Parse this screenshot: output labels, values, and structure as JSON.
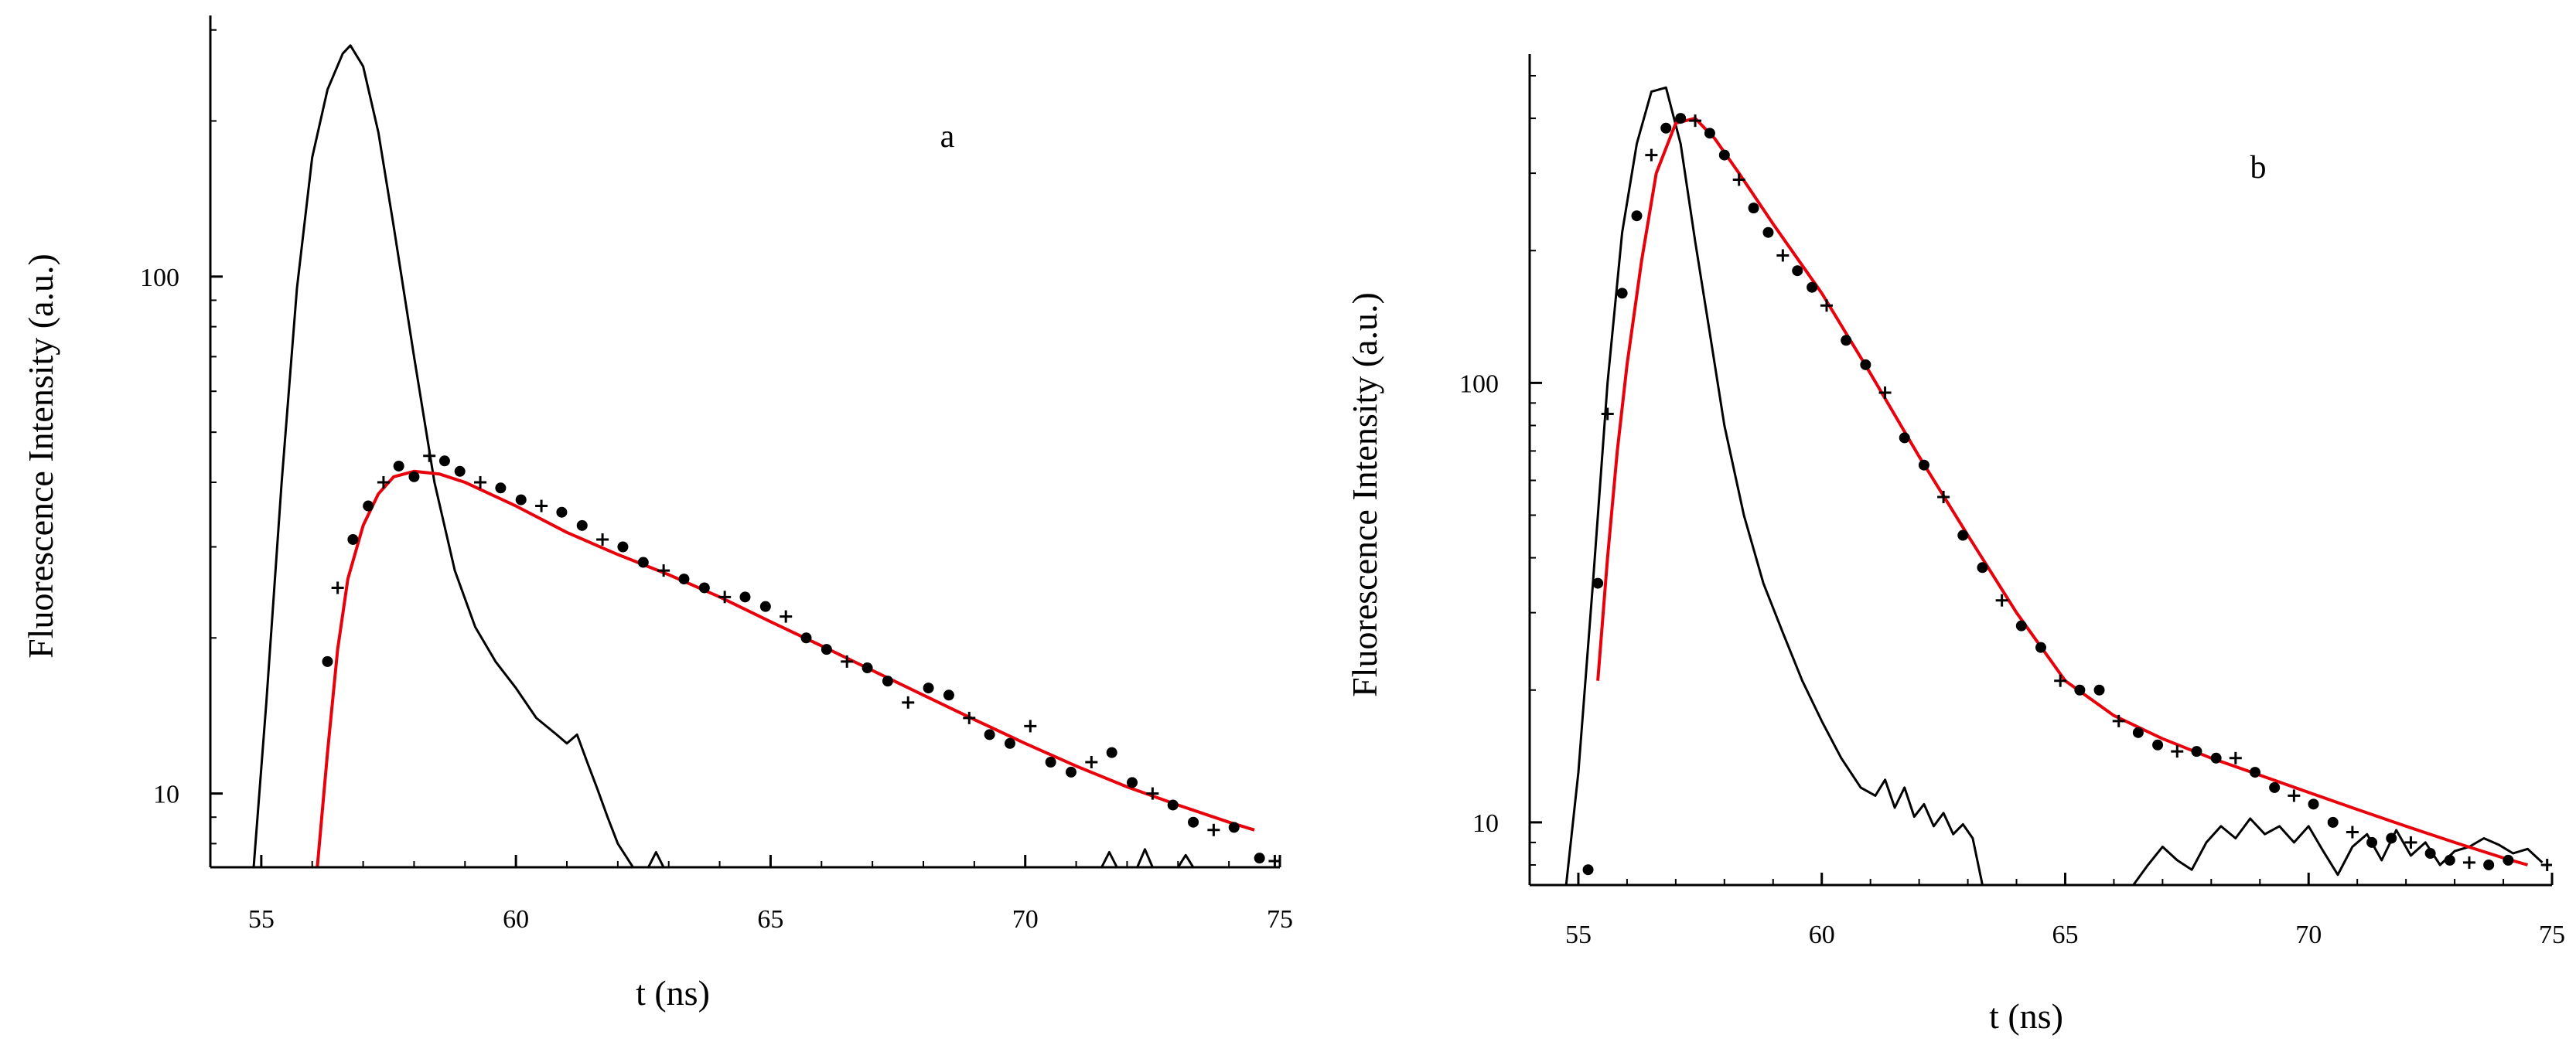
{
  "chart_data": [
    {
      "type": "line",
      "panel_label": "a",
      "xlabel": "t (ns)",
      "ylabel": "Fluorescence Intensity (a.u.)",
      "xlim": [
        54,
        75
      ],
      "ylim": [
        7.2,
        320
      ],
      "yscale": "log",
      "xticks": [
        55,
        60,
        65,
        70,
        75
      ],
      "yticks": [
        10,
        100
      ],
      "grid": false,
      "legend": "none",
      "colors": {
        "fit": "#e8000b",
        "irf": "#000000",
        "data": "#000000"
      },
      "series": [
        {
          "role": "instrument-response",
          "style": "line",
          "x": [
            54.85,
            55.1,
            55.4,
            55.7,
            56.0,
            56.3,
            56.6,
            56.75,
            57.0,
            57.3,
            57.6,
            58.0,
            58.4,
            58.8,
            59.2,
            59.6,
            60.0,
            60.4,
            60.8,
            61.0,
            61.2,
            61.4,
            61.6,
            61.8,
            62.0,
            62.3
          ],
          "y": [
            7.2,
            15,
            40,
            95,
            170,
            230,
            270,
            280,
            255,
            190,
            125,
            70,
            40,
            27,
            21,
            18,
            16,
            14,
            13,
            12.5,
            13,
            11.5,
            10.2,
            9.0,
            8.0,
            7.2
          ]
        },
        {
          "role": "instrument-response-tail",
          "style": "line",
          "x": [
            62.6,
            62.75,
            62.9,
            71.5,
            71.65,
            71.8,
            72.2,
            72.35,
            72.5,
            73.0,
            73.15,
            73.3
          ],
          "y": [
            7.2,
            7.7,
            7.2,
            7.2,
            7.7,
            7.2,
            7.2,
            7.8,
            7.2,
            7.2,
            7.6,
            7.2
          ]
        },
        {
          "role": "fit",
          "style": "line",
          "x": [
            56.1,
            56.3,
            56.5,
            56.7,
            57.0,
            57.3,
            57.6,
            58.0,
            58.5,
            59.0,
            60.0,
            61.0,
            62.0,
            63.0,
            64.0,
            65.0,
            66.0,
            67.0,
            68.0,
            69.0,
            70.0,
            71.0,
            72.0,
            73.0,
            74.0,
            74.5
          ],
          "y": [
            7.2,
            12,
            19,
            26,
            33,
            38,
            41,
            42,
            41.5,
            40,
            36,
            32,
            29,
            26.5,
            24,
            21.5,
            19.3,
            17.3,
            15.5,
            13.9,
            12.5,
            11.3,
            10.3,
            9.5,
            8.8,
            8.5
          ]
        },
        {
          "role": "data",
          "style": "markers",
          "x": [
            56.3,
            56.5,
            56.8,
            57.1,
            57.4,
            57.7,
            58.0,
            58.3,
            58.6,
            58.9,
            59.3,
            59.7,
            60.1,
            60.5,
            60.9,
            61.3,
            61.7,
            62.1,
            62.5,
            62.9,
            63.3,
            63.7,
            64.1,
            64.5,
            64.9,
            65.3,
            65.7,
            66.1,
            66.5,
            66.9,
            67.3,
            67.7,
            68.1,
            68.5,
            68.9,
            69.3,
            69.7,
            70.1,
            70.5,
            70.9,
            71.3,
            71.7,
            72.1,
            72.5,
            72.9,
            73.3,
            73.7,
            74.1,
            74.6,
            74.9
          ],
          "y": [
            18,
            25,
            31,
            36,
            40,
            43,
            41,
            45,
            44,
            42,
            40,
            39,
            37,
            36,
            35,
            33,
            31,
            30,
            28,
            27,
            26,
            25,
            24,
            24,
            23,
            22,
            20,
            19,
            18,
            17.5,
            16.5,
            15,
            16,
            15.5,
            14,
            13,
            12.5,
            13.5,
            11.5,
            11,
            11.5,
            12,
            10.5,
            10,
            9.5,
            8.8,
            8.5,
            8.6,
            7.5,
            7.4
          ]
        }
      ]
    },
    {
      "type": "line",
      "panel_label": "b",
      "xlabel": "t (ns)",
      "ylabel": "Fluorescence Intensity (a.u.)",
      "xlim": [
        54,
        75
      ],
      "ylim": [
        7.2,
        560
      ],
      "yscale": "log",
      "xticks": [
        55,
        60,
        65,
        70,
        75
      ],
      "yticks": [
        10,
        100
      ],
      "grid": false,
      "legend": "none",
      "colors": {
        "fit": "#e8000b",
        "irf": "#000000",
        "data": "#000000"
      },
      "series": [
        {
          "role": "instrument-response",
          "style": "line",
          "x": [
            54.75,
            55.0,
            55.3,
            55.6,
            55.9,
            56.2,
            56.5,
            56.8,
            57.1,
            57.4,
            57.7,
            58.0,
            58.4,
            58.8,
            59.2,
            59.6,
            60.0,
            60.4,
            60.8,
            61.1,
            61.3,
            61.5,
            61.7,
            61.9,
            62.1,
            62.3,
            62.5,
            62.7,
            62.9,
            63.1,
            63.3
          ],
          "y": [
            7.2,
            13,
            35,
            100,
            220,
            350,
            460,
            470,
            350,
            210,
            130,
            80,
            50,
            35,
            27,
            21,
            17,
            14,
            12,
            11.5,
            12.5,
            10.8,
            12,
            10.3,
            11,
            9.8,
            10.5,
            9.4,
            9.9,
            9.2,
            7.2
          ]
        },
        {
          "role": "instrument-response-tail",
          "style": "line",
          "x": [
            66.4,
            66.7,
            67.0,
            67.3,
            67.6,
            67.9,
            68.2,
            68.5,
            68.8,
            69.1,
            69.4,
            69.7,
            70.0,
            70.3,
            70.6,
            70.9,
            71.2,
            71.5,
            71.8,
            72.1,
            72.4,
            72.7,
            73.0,
            73.3,
            73.6,
            73.9,
            74.2,
            74.5,
            74.8
          ],
          "y": [
            7.2,
            8.0,
            8.8,
            8.2,
            7.8,
            9.0,
            9.8,
            9.2,
            10.2,
            9.4,
            9.8,
            9.0,
            9.8,
            8.6,
            7.6,
            8.8,
            9.4,
            8.2,
            9.6,
            8.4,
            9.0,
            8.0,
            8.6,
            8.8,
            9.2,
            8.9,
            8.5,
            8.7,
            8.1
          ]
        },
        {
          "role": "fit",
          "style": "line",
          "x": [
            55.4,
            55.6,
            55.8,
            56.0,
            56.3,
            56.6,
            57.0,
            57.4,
            57.8,
            58.3,
            59.0,
            60.0,
            61.0,
            62.0,
            63.0,
            64.0,
            65.0,
            66.0,
            67.0,
            68.0,
            69.0,
            70.0,
            71.0,
            72.0,
            73.0,
            74.0,
            74.5
          ],
          "y": [
            21,
            40,
            70,
            110,
            190,
            300,
            390,
            400,
            360,
            300,
            230,
            160,
            105,
            68,
            45,
            30,
            21,
            17.5,
            15.5,
            14,
            12.8,
            11.7,
            10.7,
            9.8,
            9.0,
            8.3,
            8.0
          ]
        },
        {
          "role": "data",
          "style": "markers",
          "x": [
            55.4,
            55.6,
            55.9,
            56.2,
            56.5,
            56.8,
            57.1,
            57.4,
            57.7,
            58.0,
            58.3,
            58.6,
            58.9,
            59.2,
            59.5,
            59.8,
            60.1,
            60.5,
            60.9,
            61.3,
            61.7,
            62.1,
            62.5,
            62.9,
            63.3,
            63.7,
            64.1,
            64.5,
            64.9,
            65.3,
            65.7,
            66.1,
            66.5,
            66.9,
            67.3,
            67.7,
            68.1,
            68.5,
            68.9,
            69.3,
            69.7,
            70.1,
            70.5,
            70.9,
            71.3,
            71.7,
            72.1,
            72.5,
            72.9,
            73.3,
            73.7,
            74.1,
            74.9
          ],
          "y": [
            35,
            85,
            160,
            240,
            330,
            380,
            400,
            395,
            370,
            330,
            290,
            250,
            220,
            195,
            180,
            165,
            150,
            125,
            110,
            95,
            75,
            65,
            55,
            45,
            38,
            32,
            28,
            25,
            21,
            20,
            20,
            17,
            16,
            15,
            14.5,
            14.5,
            14,
            14,
            13,
            12,
            11.5,
            11,
            10,
            9.5,
            9,
            9.2,
            9,
            8.5,
            8.2,
            8.1,
            8,
            8.2,
            8
          ]
        },
        {
          "role": "outlier",
          "style": "markers",
          "x": [
            55.2
          ],
          "y": [
            7.8
          ]
        }
      ]
    }
  ]
}
